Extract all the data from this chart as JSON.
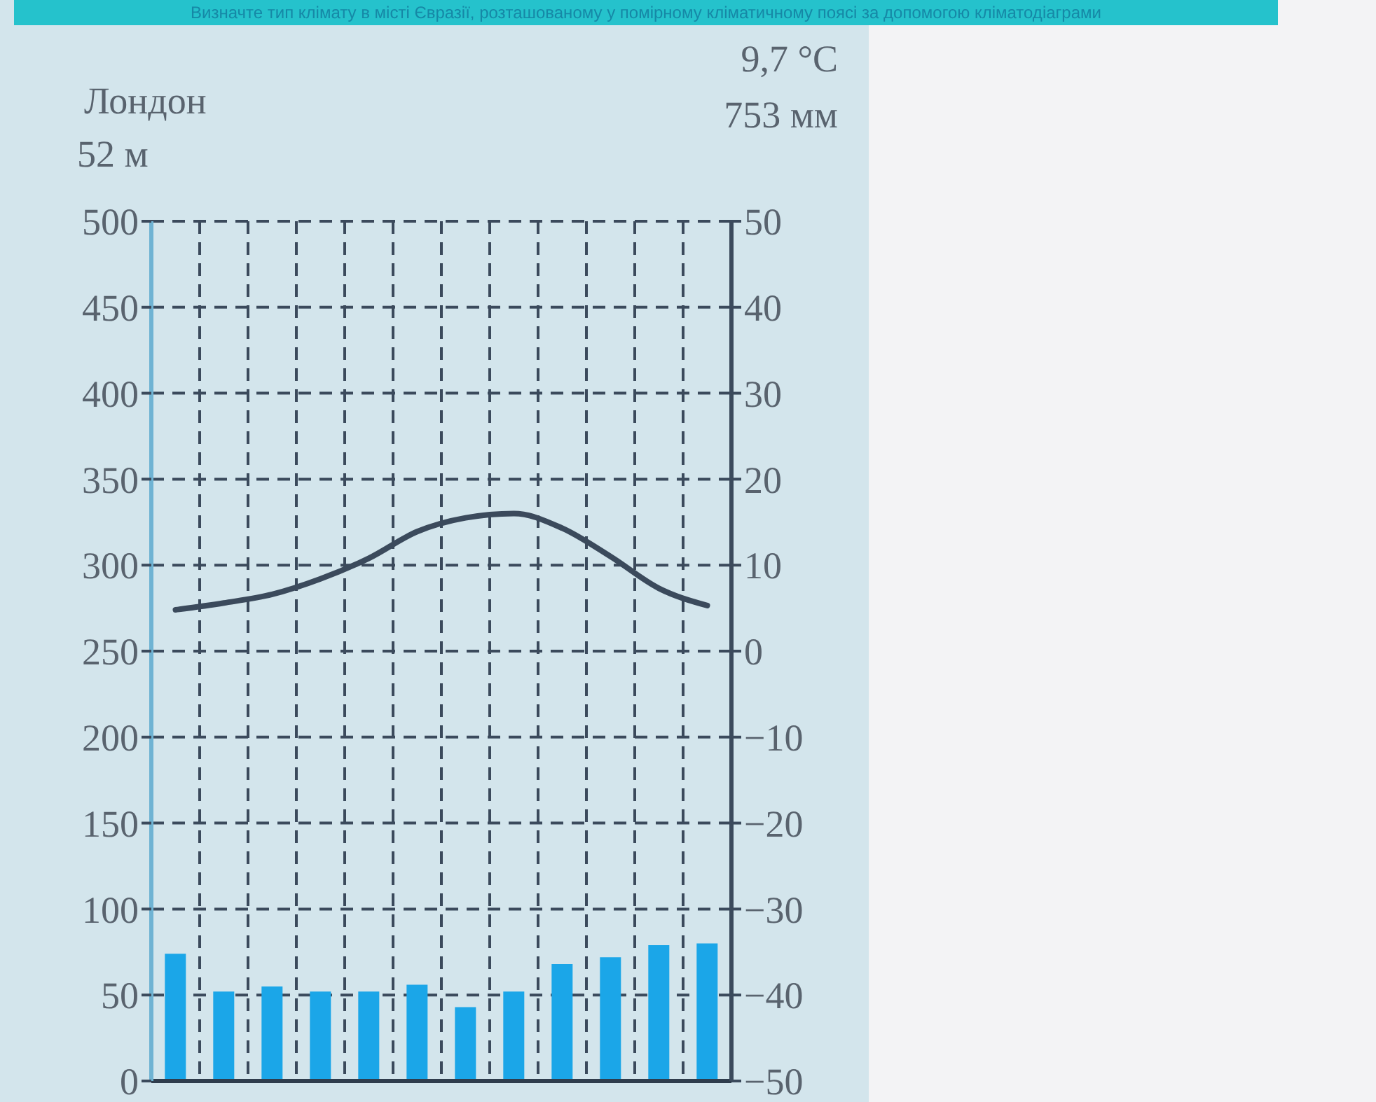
{
  "chart_data": {
    "type": "bar",
    "title": "Визначте тип клімату в місті Євразії, розташованому у помірному кліматичному поясі за допомогою кліматодіаграми",
    "annotations": [
      "Лондон",
      "52 м",
      "9,7 °C",
      "753 мм"
    ],
    "categories": [
      null,
      null,
      null,
      null,
      null,
      null,
      null,
      null,
      null,
      null,
      null,
      null
    ],
    "series": [
      {
        "color": "#1ba6e8",
        "values": [
          74,
          52,
          55,
          52,
          52,
          56,
          43,
          52,
          68,
          72,
          79,
          80
        ]
      },
      {
        "type": "line",
        "axis": "y2",
        "color": "#3b4a5c",
        "values": [
          4.8,
          5.6,
          6.6,
          8.4,
          10.8,
          13.9,
          15.5,
          16,
          14.3,
          11,
          7.3,
          5.3
        ]
      }
    ],
    "ylim": [
      0,
      500
    ],
    "yticks": [
      0,
      50,
      100,
      150,
      200,
      250,
      300,
      350,
      400,
      450,
      500
    ],
    "y2lim": [
      -50,
      50
    ],
    "y2ticks": [
      {
        "value": -50,
        "label": "−50"
      },
      {
        "value": -40,
        "label": "−40"
      },
      {
        "value": -30,
        "label": "−30"
      },
      {
        "value": -20,
        "label": "−20"
      },
      {
        "value": -10,
        "label": "−10"
      },
      0,
      10,
      20,
      30,
      40,
      50
    ],
    "grid": true,
    "marker": "none"
  }
}
